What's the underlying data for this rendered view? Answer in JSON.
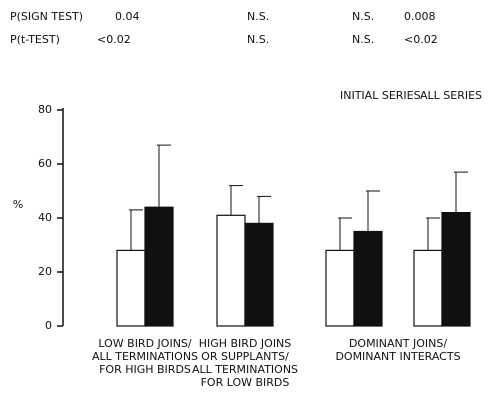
{
  "chart_data": {
    "type": "bar",
    "y_label": "%",
    "ylim": [
      0,
      80
    ],
    "yticks": [
      0,
      20,
      40,
      60,
      80
    ],
    "categories": [
      [
        "LOW BIRD JOINS/",
        "ALL TERMINATIONS",
        "FOR HIGH BIRDS"
      ],
      [
        "HIGH BIRD JOINS",
        "OR SUPPLANTS/",
        "ALL TERMINATIONS",
        "FOR LOW BIRDS"
      ],
      [
        "DOMINANT JOINS/",
        "DOMINANT INTERACTS"
      ]
    ],
    "series": [
      {
        "name": "INITIAL SERIES",
        "color": "#ffffff",
        "values": [
          28,
          41,
          28
        ],
        "errors": [
          15,
          11,
          12
        ]
      },
      {
        "name": "ALL SERIES",
        "color": "#111111",
        "values": [
          44,
          38,
          35
        ],
        "errors": [
          23,
          10,
          15
        ]
      }
    ],
    "extra_group": {
      "values": [
        28,
        42
      ],
      "errors": [
        12,
        15
      ]
    },
    "stats": [
      [
        "P(SIGN TEST)",
        "0.04",
        "N.S.",
        "N.S.",
        "0.008"
      ],
      [
        "P(t-TEST)",
        "<0.02",
        "N.S.",
        "N.S.",
        "<0.02"
      ]
    ]
  }
}
